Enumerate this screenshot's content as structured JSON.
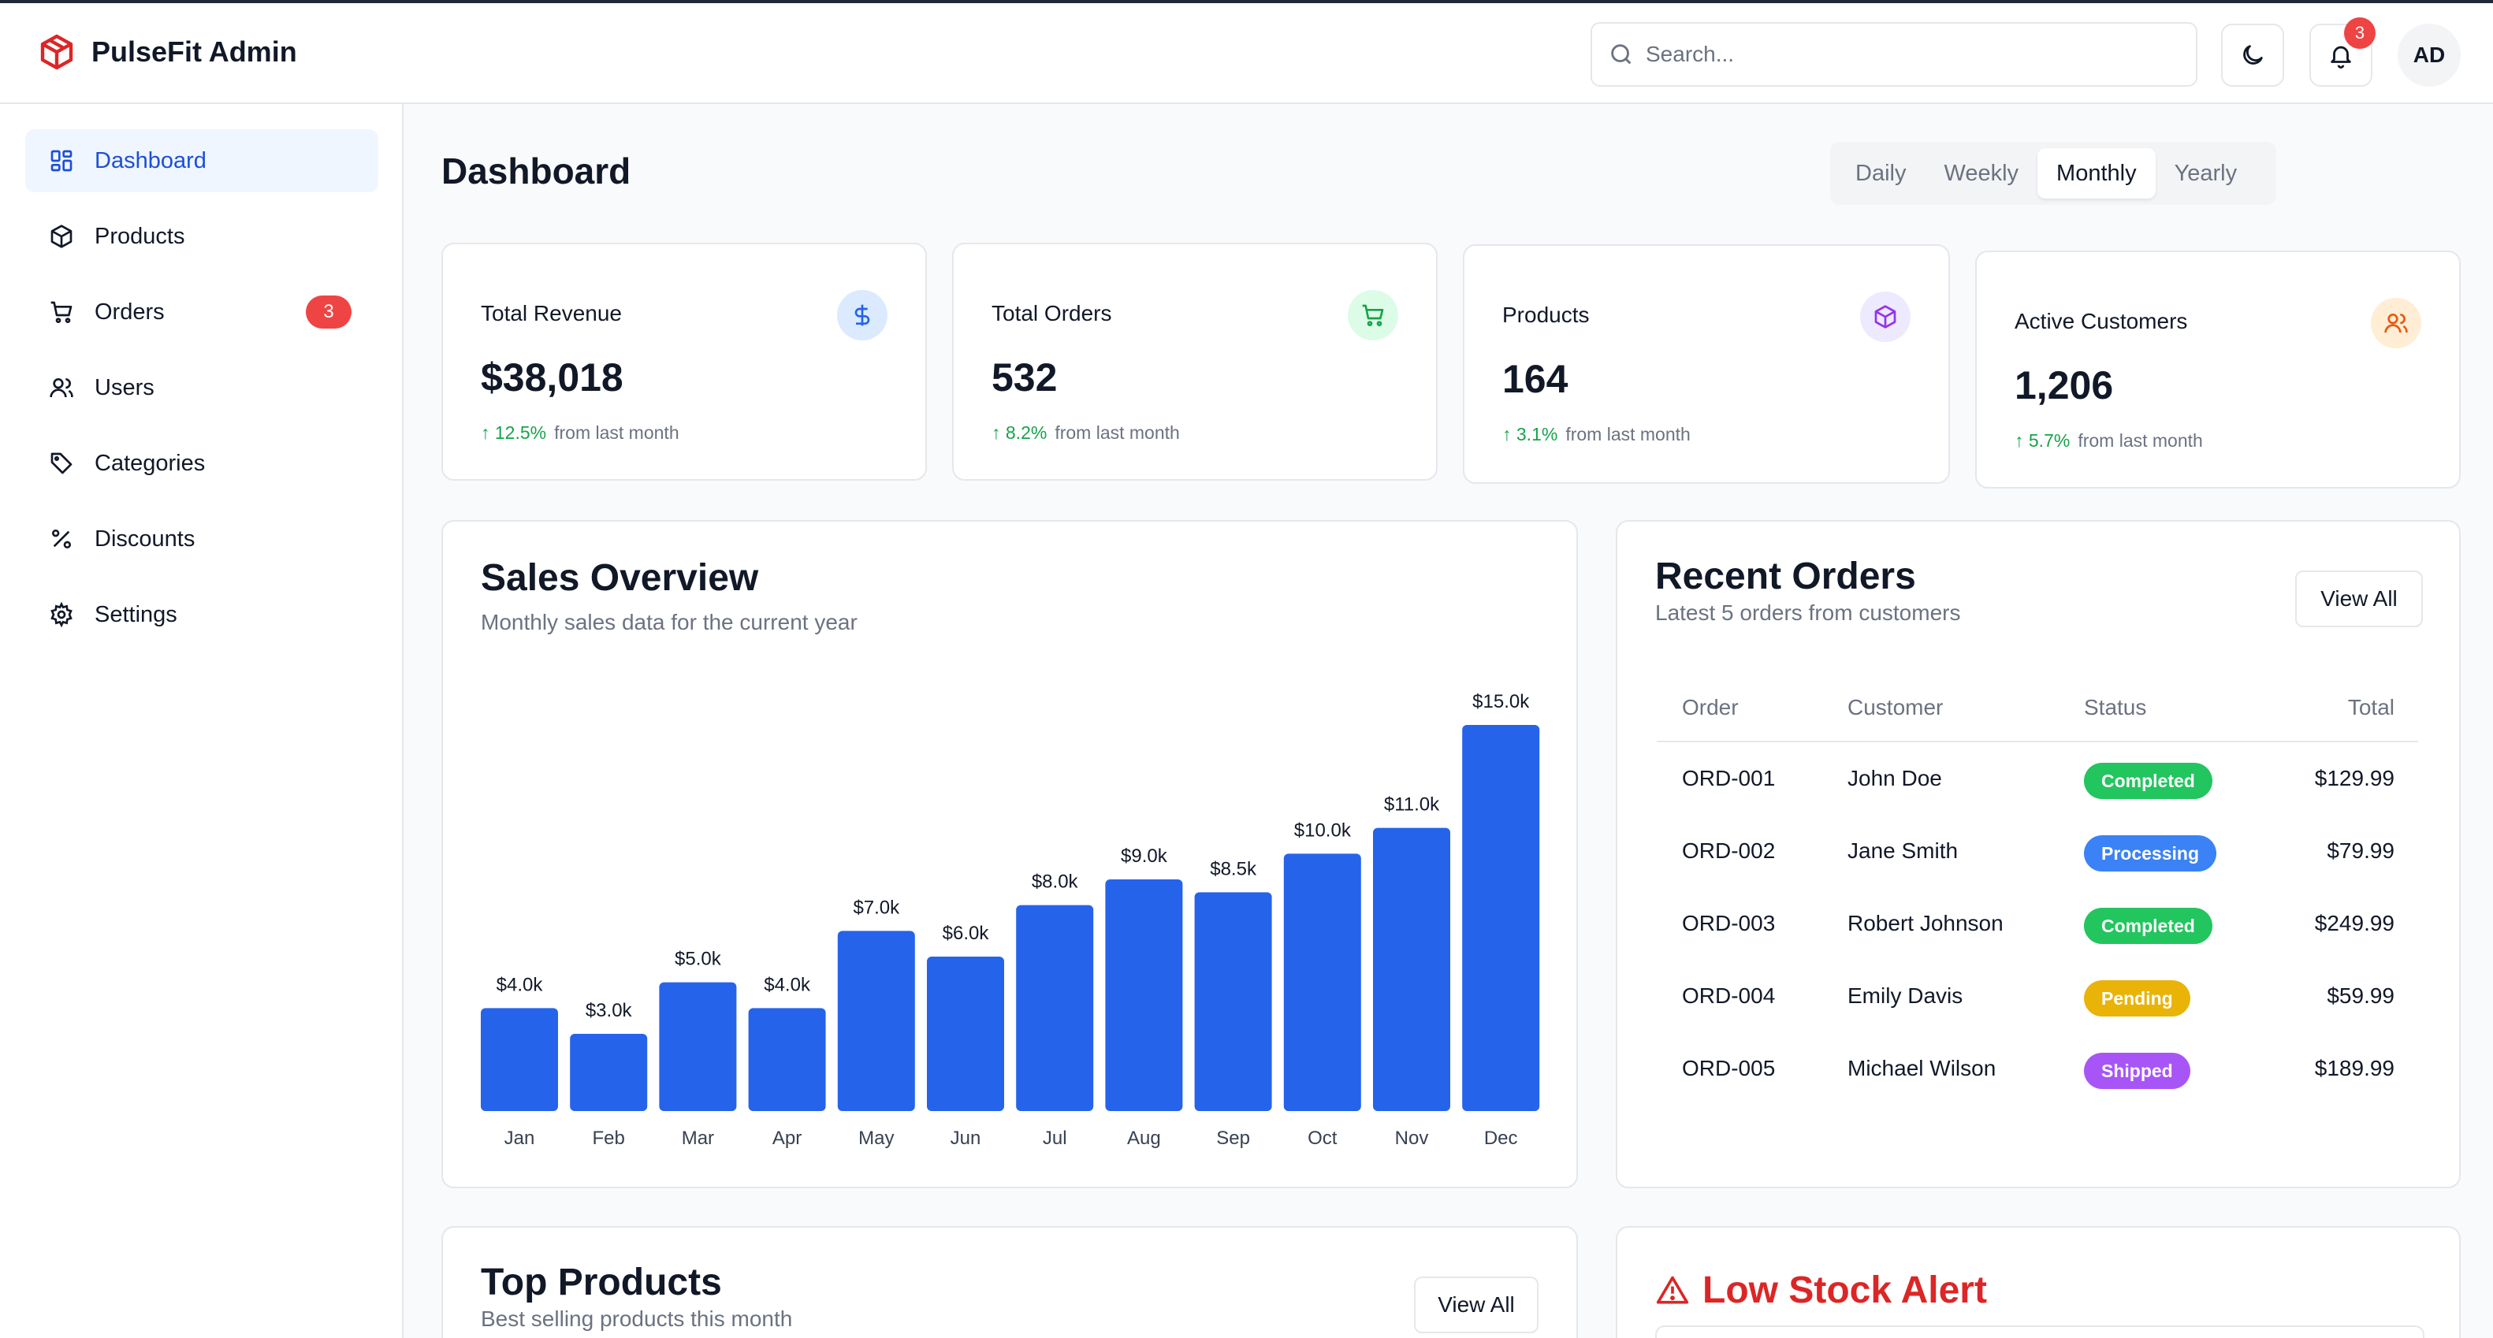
{
  "app": {
    "name": "PulseFit Admin"
  },
  "header": {
    "search_placeholder": "Search...",
    "notifications_count": "3",
    "avatar_initials": "AD"
  },
  "sidebar": {
    "items": [
      {
        "label": "Dashboard",
        "icon": "grid-icon",
        "active": true
      },
      {
        "label": "Products",
        "icon": "package-icon"
      },
      {
        "label": "Orders",
        "icon": "cart-icon",
        "badge": "3"
      },
      {
        "label": "Users",
        "icon": "users-icon"
      },
      {
        "label": "Categories",
        "icon": "tag-icon"
      },
      {
        "label": "Discounts",
        "icon": "percent-icon"
      },
      {
        "label": "Settings",
        "icon": "gear-icon"
      }
    ]
  },
  "page": {
    "title": "Dashboard",
    "period_tabs": [
      "Daily",
      "Weekly",
      "Monthly",
      "Yearly"
    ],
    "active_period": "Monthly"
  },
  "stats": [
    {
      "label": "Total Revenue",
      "value": "$38,018",
      "change": "12.5%",
      "suffix": "from last month",
      "icon": "dollar-icon",
      "icon_color": "#2563eb",
      "icon_bg": "#dbeafe"
    },
    {
      "label": "Total Orders",
      "value": "532",
      "change": "8.2%",
      "suffix": "from last month",
      "icon": "cart-icon",
      "icon_color": "#16a34a",
      "icon_bg": "#dcfce7"
    },
    {
      "label": "Products",
      "value": "164",
      "change": "3.1%",
      "suffix": "from last month",
      "icon": "package-icon",
      "icon_color": "#9333ea",
      "icon_bg": "#ede9fe"
    },
    {
      "label": "Active Customers",
      "value": "1,206",
      "change": "5.7%",
      "suffix": "from last month",
      "icon": "users-icon",
      "icon_color": "#ea580c",
      "icon_bg": "#ffedd5"
    }
  ],
  "sales_overview": {
    "title": "Sales Overview",
    "subtitle": "Monthly sales data for the current year"
  },
  "chart_data": {
    "type": "bar",
    "title": "Sales Overview",
    "subtitle": "Monthly sales data for the current year",
    "categories": [
      "Jan",
      "Feb",
      "Mar",
      "Apr",
      "May",
      "Jun",
      "Jul",
      "Aug",
      "Sep",
      "Oct",
      "Nov",
      "Dec"
    ],
    "values": [
      4.0,
      3.0,
      5.0,
      4.0,
      7.0,
      6.0,
      8.0,
      9.0,
      8.5,
      10.0,
      11.0,
      15.0
    ],
    "data_labels": [
      "$4.0k",
      "$3.0k",
      "$5.0k",
      "$4.0k",
      "$7.0k",
      "$6.0k",
      "$8.0k",
      "$9.0k",
      "$8.5k",
      "$10.0k",
      "$11.0k",
      "$15.0k"
    ],
    "bar_color": "#2563eb",
    "grid": false
  },
  "recent_orders": {
    "title": "Recent Orders",
    "subtitle": "Latest 5 orders from customers",
    "view_all": "View All",
    "columns": [
      "Order",
      "Customer",
      "Status",
      "Total"
    ],
    "rows": [
      {
        "order": "ORD-001",
        "customer": "John Doe",
        "status": "Completed",
        "status_color": "#22c55e",
        "total": "$129.99"
      },
      {
        "order": "ORD-002",
        "customer": "Jane Smith",
        "status": "Processing",
        "status_color": "#3b82f6",
        "total": "$79.99"
      },
      {
        "order": "ORD-003",
        "customer": "Robert Johnson",
        "status": "Completed",
        "status_color": "#22c55e",
        "total": "$249.99"
      },
      {
        "order": "ORD-004",
        "customer": "Emily Davis",
        "status": "Pending",
        "status_color": "#eab308",
        "total": "$59.99"
      },
      {
        "order": "ORD-005",
        "customer": "Michael Wilson",
        "status": "Shipped",
        "status_color": "#a855f7",
        "total": "$189.99"
      }
    ]
  },
  "top_products": {
    "title": "Top Products",
    "subtitle": "Best selling products this month",
    "view_all": "View All"
  },
  "low_stock": {
    "title": "Low Stock Alert"
  }
}
